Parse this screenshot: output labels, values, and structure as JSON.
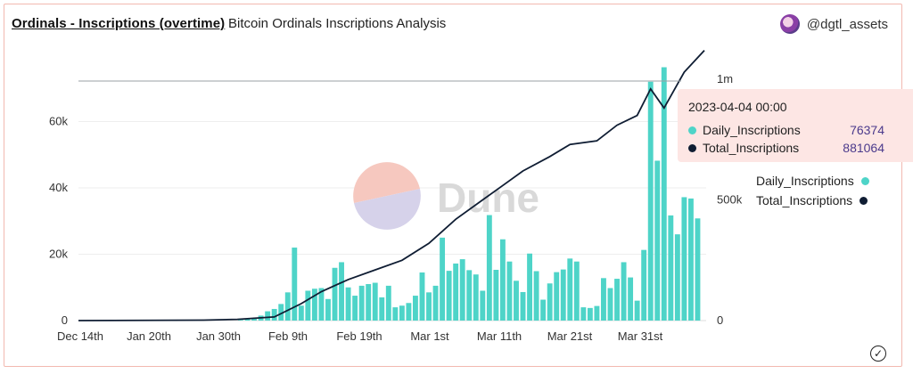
{
  "header": {
    "title": "Ordinals - Inscriptions (overtime)",
    "subtitle": "Bitcoin Ordinals Inscriptions Analysis",
    "author": "@dgtl_assets"
  },
  "watermark": "Dune",
  "colors": {
    "bar": "#4ed4c8",
    "line": "#0f1d33",
    "watermark_pink": "#f6c8bf",
    "watermark_purple": "#d6d2ea",
    "tooltip_bg": "#fde6e4"
  },
  "tooltip": {
    "date": "2023-04-04 00:00",
    "rows": [
      {
        "name": "Daily_Inscriptions",
        "value": "76374",
        "color": "#4ed4c8"
      },
      {
        "name": "Total_Inscriptions",
        "value": "881064",
        "color": "#0f1d33"
      }
    ]
  },
  "legend": [
    {
      "name": "Daily_Inscriptions",
      "color": "#4ed4c8"
    },
    {
      "name": "Total_Inscriptions",
      "color": "#0f1d33"
    }
  ],
  "chart_data": {
    "type": "bar",
    "title": "Ordinals - Inscriptions (overtime)",
    "x_tick_labels": [
      "Dec 14th",
      "Jan 20th",
      "Jan 30th",
      "Feb 9th",
      "Feb 19th",
      "Mar 1st",
      "Mar 11th",
      "Mar 21st",
      "Mar 31st"
    ],
    "y_left": {
      "ticks": [
        0,
        20000,
        40000,
        60000
      ],
      "tick_labels": [
        "0",
        "20k",
        "40k",
        "60k"
      ],
      "range": [
        0,
        80000
      ]
    },
    "y_right": {
      "ticks": [
        0,
        500000,
        1000000
      ],
      "tick_labels": [
        "0",
        "500k",
        "1m"
      ],
      "range": [
        0,
        1100000
      ]
    },
    "grid": true,
    "legend_position": "right",
    "x_start": "2022-12-14",
    "series": [
      {
        "name": "Daily_Inscriptions",
        "type": "bar",
        "axis": "left",
        "dates": [
          "2023-01-31",
          "2023-02-01",
          "2023-02-02",
          "2023-02-03",
          "2023-02-04",
          "2023-02-05",
          "2023-02-06",
          "2023-02-07",
          "2023-02-08",
          "2023-02-09",
          "2023-02-10",
          "2023-02-11",
          "2023-02-12",
          "2023-02-13",
          "2023-02-14",
          "2023-02-15",
          "2023-02-16",
          "2023-02-17",
          "2023-02-18",
          "2023-02-19",
          "2023-02-20",
          "2023-02-21",
          "2023-02-22",
          "2023-02-23",
          "2023-02-24",
          "2023-02-25",
          "2023-02-26",
          "2023-02-27",
          "2023-02-28",
          "2023-03-01",
          "2023-03-02",
          "2023-03-03",
          "2023-03-04",
          "2023-03-05",
          "2023-03-06",
          "2023-03-07",
          "2023-03-08",
          "2023-03-09",
          "2023-03-10",
          "2023-03-11",
          "2023-03-12",
          "2023-03-13",
          "2023-03-14",
          "2023-03-15",
          "2023-03-16",
          "2023-03-17",
          "2023-03-18",
          "2023-03-19",
          "2023-03-20",
          "2023-03-21",
          "2023-03-22",
          "2023-03-23",
          "2023-03-24",
          "2023-03-25",
          "2023-03-26",
          "2023-03-27",
          "2023-03-28",
          "2023-03-29",
          "2023-03-30",
          "2023-03-31",
          "2023-04-01",
          "2023-04-02",
          "2023-04-03",
          "2023-04-04",
          "2023-04-05",
          "2023-04-06",
          "2023-04-07",
          "2023-04-08",
          "2023-04-09",
          "2023-04-10"
        ],
        "values": [
          200,
          500,
          800,
          1500,
          2800,
          3500,
          5000,
          8500,
          22000,
          4500,
          9000,
          9600,
          9800,
          6500,
          15900,
          17600,
          10000,
          7500,
          10500,
          11000,
          11400,
          7000,
          10500,
          4000,
          4500,
          5300,
          7500,
          14500,
          8500,
          10500,
          25000,
          15000,
          17200,
          18500,
          15200,
          13900,
          9000,
          31800,
          15300,
          24500,
          17800,
          12000,
          8600,
          20200,
          14900,
          6300,
          11200,
          14600,
          15400,
          18700,
          17800,
          4000,
          3800,
          4400,
          12800,
          9800,
          12600,
          17600,
          13000,
          6000,
          21300,
          72000,
          48200,
          76374,
          31700,
          26000,
          37200,
          36800,
          30800,
          0
        ]
      },
      {
        "name": "Total_Inscriptions",
        "type": "line",
        "axis": "right",
        "dates": [
          "2022-12-14",
          "2023-01-20",
          "2023-01-30",
          "2023-02-05",
          "2023-02-09",
          "2023-02-12",
          "2023-02-16",
          "2023-02-20",
          "2023-02-24",
          "2023-02-28",
          "2023-03-04",
          "2023-03-08",
          "2023-03-11",
          "2023-03-14",
          "2023-03-18",
          "2023-03-21",
          "2023-03-25",
          "2023-03-28",
          "2023-03-31",
          "2023-04-02",
          "2023-04-04",
          "2023-04-07",
          "2023-04-10"
        ],
        "values": [
          0,
          2000,
          5000,
          15000,
          70000,
          120000,
          170000,
          210000,
          250000,
          320000,
          420000,
          500000,
          560000,
          620000,
          680000,
          730000,
          745000,
          810000,
          850000,
          960000,
          881064,
          1030000,
          1120000
        ]
      }
    ]
  }
}
